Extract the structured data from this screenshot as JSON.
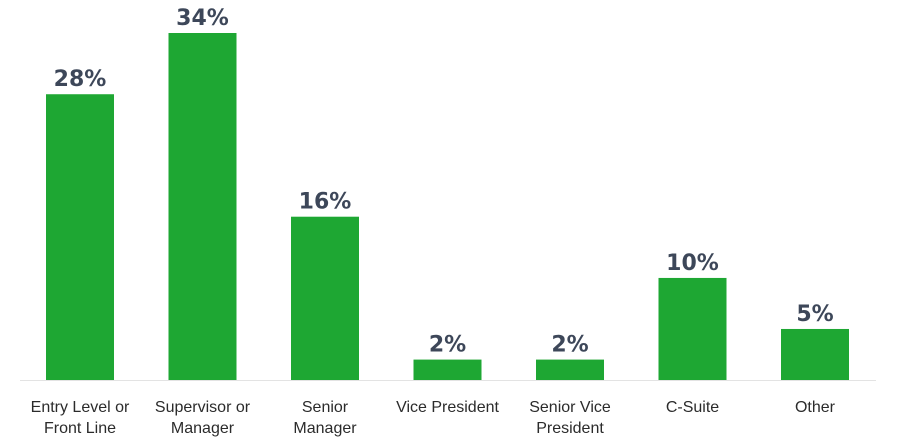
{
  "chart_data": {
    "type": "bar",
    "categories": [
      [
        "Entry Level or",
        "Front Line"
      ],
      [
        "Supervisor or",
        "Manager"
      ],
      [
        "Senior",
        "Manager"
      ],
      [
        "Vice President"
      ],
      [
        "Senior Vice",
        "President"
      ],
      [
        "C-Suite"
      ],
      [
        "Other"
      ]
    ],
    "values": [
      28,
      34,
      16,
      2,
      2,
      10,
      5
    ],
    "value_labels": [
      "28%",
      "34%",
      "16%",
      "2%",
      "2%",
      "10%",
      "5%"
    ],
    "unit": "%",
    "ylim": [
      0,
      34
    ],
    "grid": false,
    "legend": "none"
  },
  "colors": {
    "bar": "#1ea733",
    "value_text": "#3d4759",
    "label_text": "#2b2b2b",
    "axis": "#e3e3e3"
  }
}
